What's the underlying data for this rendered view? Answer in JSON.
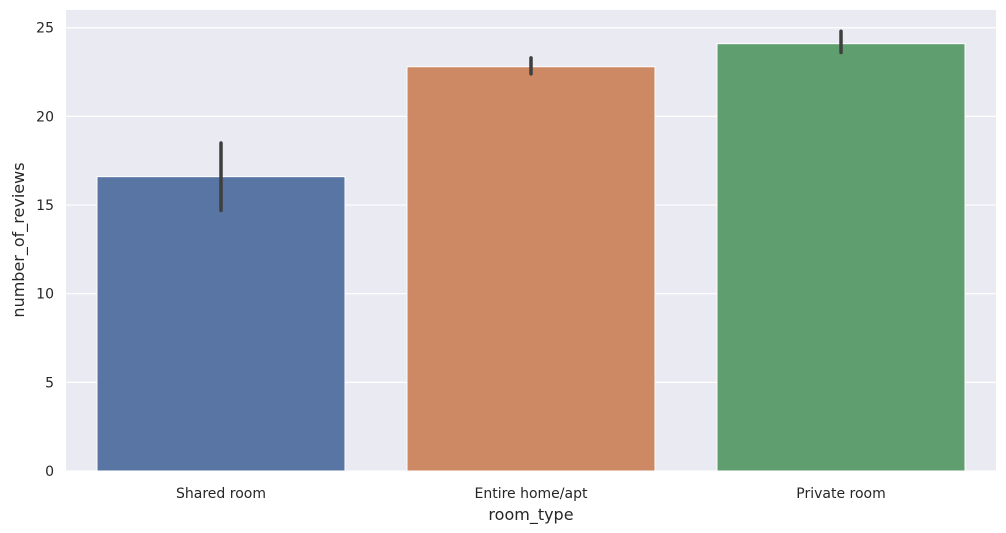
{
  "chart_data": {
    "type": "bar",
    "title": "",
    "xlabel": "room_type",
    "ylabel": "number_of_reviews",
    "categories": [
      "Shared room",
      "Entire home/apt",
      "Private room"
    ],
    "values": [
      16.6,
      22.8,
      24.1
    ],
    "error_bars": [
      [
        14.7,
        18.5
      ],
      [
        22.4,
        23.3
      ],
      [
        23.6,
        24.8
      ]
    ],
    "ylim": [
      0,
      26
    ],
    "yticks": [
      0,
      5,
      10,
      15,
      20,
      25
    ],
    "grid": true,
    "legend": "none",
    "colors": [
      "#5875a4",
      "#cc8963",
      "#5f9e6e"
    ],
    "background": "#eaeaf2",
    "errorbar_color": "#3f3f3f"
  }
}
